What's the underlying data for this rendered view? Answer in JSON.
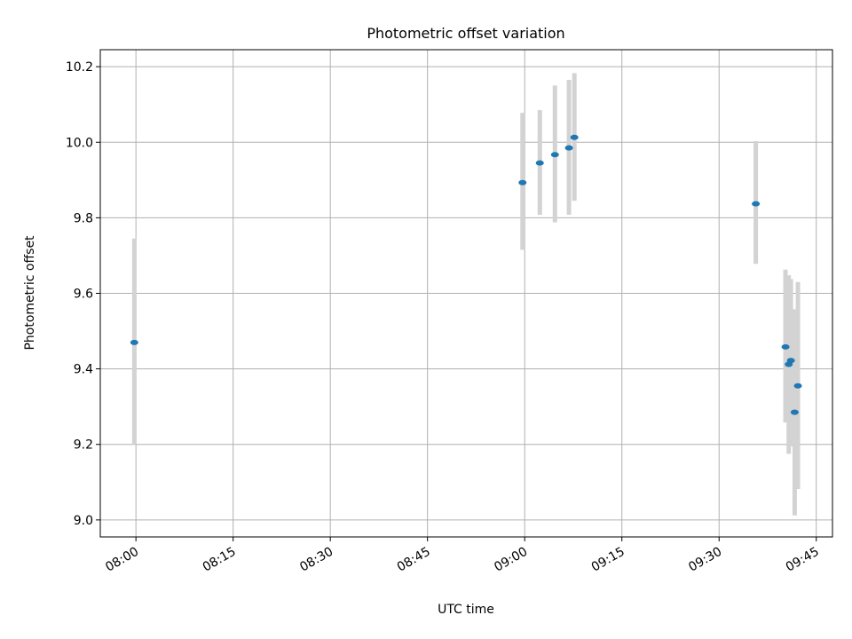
{
  "chart_data": {
    "type": "scatter",
    "title": "Photometric offset variation",
    "xlabel": "UTC time",
    "ylabel": "Photometric offset",
    "x_ticks": [
      "08:00",
      "08:15",
      "08:30",
      "08:45",
      "09:00",
      "09:15",
      "09:30",
      "09:45"
    ],
    "xlim": [
      "07:54:30",
      "09:47:30"
    ],
    "ylim": [
      8.955,
      10.245
    ],
    "y_ticks": [
      9.0,
      9.2,
      9.4,
      9.6,
      9.8,
      10.0,
      10.2
    ],
    "y_tick_labels": [
      "9.0",
      "9.2",
      "9.4",
      "9.6",
      "9.8",
      "10.0",
      "10.2"
    ],
    "grid": true,
    "colors": {
      "point": "#1f77b4",
      "errorbar": "#d3d3d3"
    },
    "series": [
      {
        "points": [
          {
            "x": "07:59:45",
            "y": 9.47,
            "ylow": 9.2,
            "yhigh": 9.745
          },
          {
            "x": "08:59:40",
            "y": 9.893,
            "ylow": 9.715,
            "yhigh": 10.078
          },
          {
            "x": "09:02:20",
            "y": 9.945,
            "ylow": 9.808,
            "yhigh": 10.085
          },
          {
            "x": "09:04:40",
            "y": 9.967,
            "ylow": 9.788,
            "yhigh": 10.15
          },
          {
            "x": "09:06:50",
            "y": 9.985,
            "ylow": 9.808,
            "yhigh": 10.165
          },
          {
            "x": "09:07:40",
            "y": 10.013,
            "ylow": 9.845,
            "yhigh": 10.183
          },
          {
            "x": "09:35:40",
            "y": 9.837,
            "ylow": 9.678,
            "yhigh": 10.003
          },
          {
            "x": "09:40:15",
            "y": 9.458,
            "ylow": 9.258,
            "yhigh": 9.663
          },
          {
            "x": "09:40:45",
            "y": 9.412,
            "ylow": 9.175,
            "yhigh": 9.648
          },
          {
            "x": "09:41:05",
            "y": 9.422,
            "ylow": 9.195,
            "yhigh": 9.638
          },
          {
            "x": "09:41:40",
            "y": 9.285,
            "ylow": 9.012,
            "yhigh": 9.558
          },
          {
            "x": "09:42:10",
            "y": 9.355,
            "ylow": 9.082,
            "yhigh": 9.63
          }
        ]
      }
    ]
  }
}
